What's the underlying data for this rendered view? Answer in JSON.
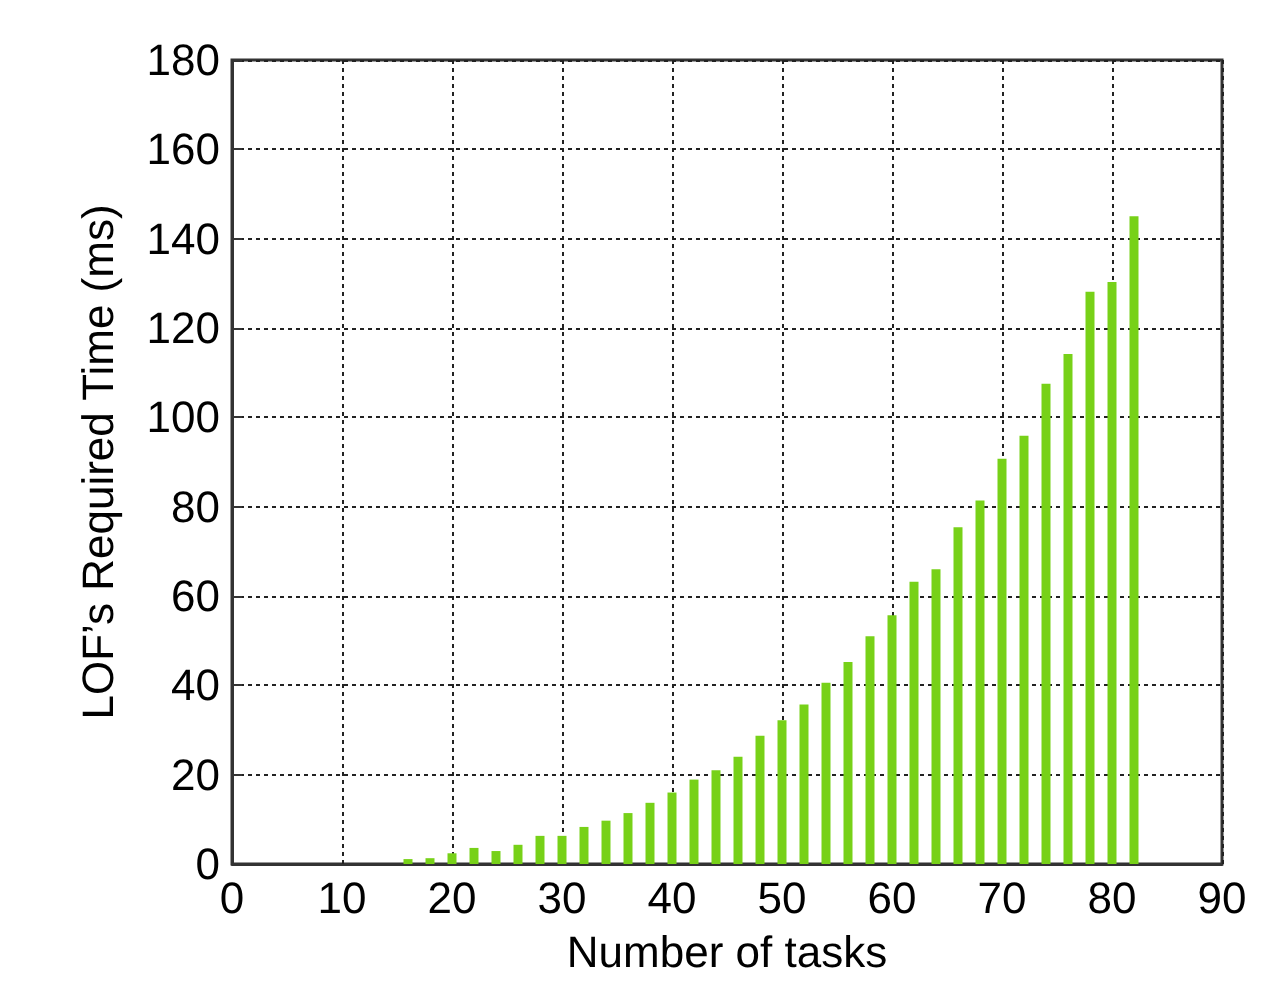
{
  "chart_data": {
    "type": "bar",
    "xlabel": "Number of tasks",
    "ylabel": "LOF’s Required Time (ms)",
    "x": [
      16,
      18,
      20,
      22,
      24,
      26,
      28,
      30,
      32,
      34,
      36,
      38,
      40,
      42,
      44,
      46,
      48,
      50,
      52,
      54,
      56,
      58,
      60,
      62,
      64,
      66,
      68,
      70,
      72,
      74,
      76,
      78,
      80,
      82
    ],
    "series": [
      {
        "color": "#77d118",
        "values": [
          1.1,
          1.3,
          2.4,
          3.6,
          2.9,
          4.3,
          6.3,
          6.3,
          8.3,
          9.7,
          11.4,
          13.7,
          16,
          18.9,
          21,
          24,
          28.7,
          32.2,
          35.7,
          40.6,
          45.2,
          51,
          55.7,
          63.2,
          66,
          75.4,
          81.4,
          90.7,
          95.9,
          107.5,
          114.2,
          128.1,
          130.3,
          145
        ]
      }
    ],
    "xlim": [
      0,
      90
    ],
    "xticks": [
      0,
      10,
      20,
      30,
      40,
      50,
      60,
      70,
      80,
      90
    ],
    "ylim": [
      0,
      180
    ],
    "yticks": [
      0,
      20,
      40,
      60,
      80,
      100,
      120,
      140,
      160,
      180
    ],
    "grid": true
  }
}
